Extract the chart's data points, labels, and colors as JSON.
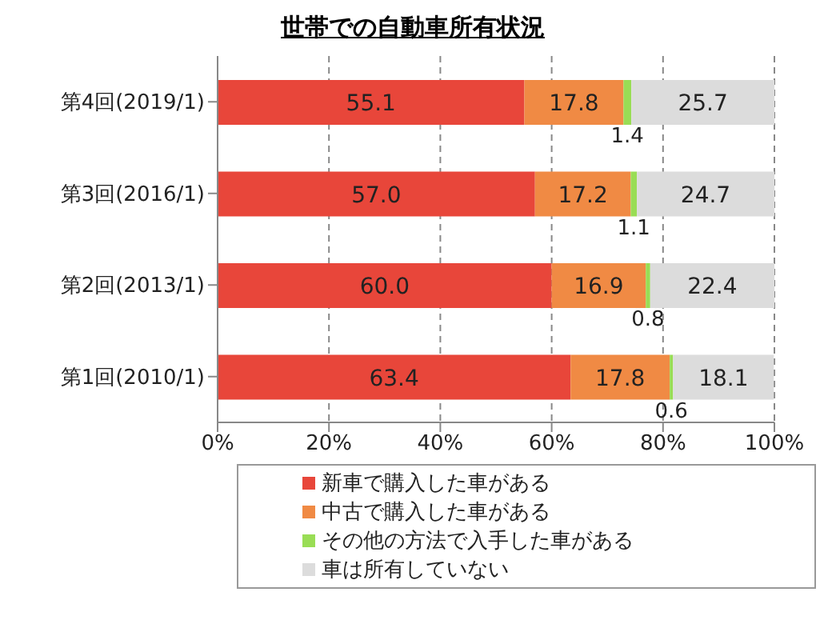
{
  "chart_data": {
    "type": "bar",
    "orientation": "horizontal",
    "stacked": true,
    "title": "世帯での自動車所有状況",
    "categories": [
      "第4回(2019/1)",
      "第3回(2016/1)",
      "第2回(2013/1)",
      "第1回(2010/1)"
    ],
    "series": [
      {
        "name": "新車で購入した車がある",
        "color": "#e8463a",
        "values": [
          55.1,
          57.0,
          60.0,
          63.4
        ],
        "value_labels": [
          "55.1",
          "57.0",
          "60.0",
          "63.4"
        ]
      },
      {
        "name": "中古で購入した車がある",
        "color": "#f08a44",
        "values": [
          17.8,
          17.2,
          16.9,
          17.8
        ],
        "value_labels": [
          "17.8",
          "17.2",
          "16.9",
          "17.8"
        ]
      },
      {
        "name": "その他の方法で入手した車がある",
        "color": "#99dd55",
        "values": [
          1.4,
          1.1,
          0.8,
          0.6
        ],
        "value_labels": [
          "1.4",
          "1.1",
          "0.8",
          "0.6"
        ]
      },
      {
        "name": "車は所有していない",
        "color": "#dcdcdc",
        "values": [
          25.7,
          24.7,
          22.4,
          18.1
        ],
        "value_labels": [
          "25.7",
          "24.7",
          "22.4",
          "18.1"
        ]
      }
    ],
    "xlim": [
      0,
      100
    ],
    "xticks": [
      {
        "value": 0,
        "label": "0%"
      },
      {
        "value": 20,
        "label": "20%"
      },
      {
        "value": 40,
        "label": "40%"
      },
      {
        "value": 60,
        "label": "60%"
      },
      {
        "value": 80,
        "label": "80%"
      },
      {
        "value": 100,
        "label": "100%"
      }
    ],
    "grid": "x",
    "legend": "bottom"
  }
}
